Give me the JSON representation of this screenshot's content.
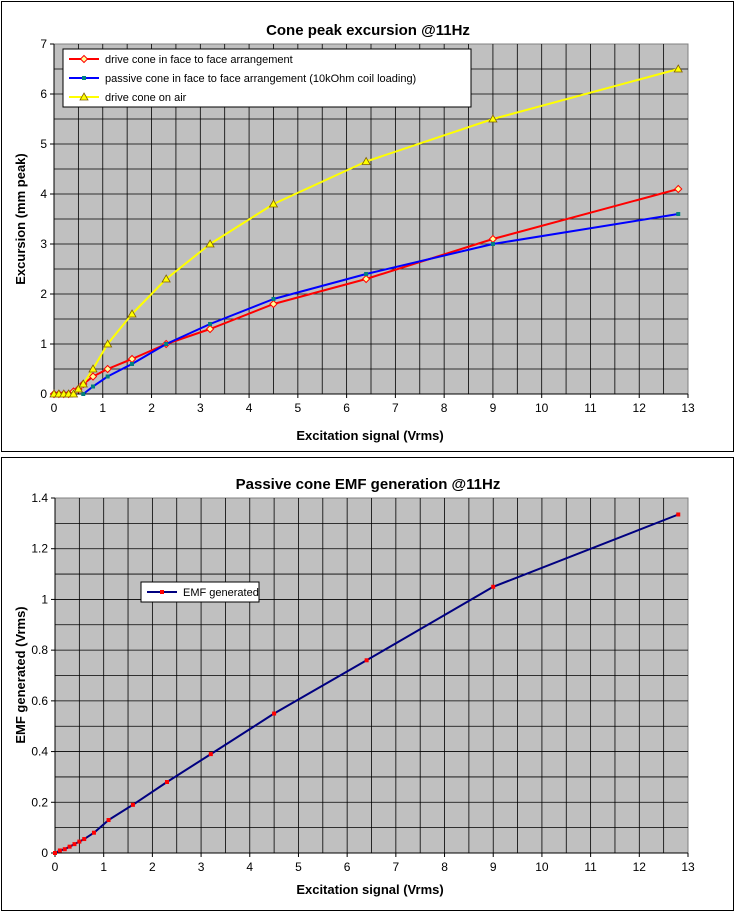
{
  "chart_data": [
    {
      "type": "line",
      "title": "Cone peak excursion @11Hz",
      "xlabel": "Excitation signal (Vrms)",
      "ylabel": "Excursion (mm peak)",
      "xlim": [
        0,
        13
      ],
      "ylim": [
        0,
        7
      ],
      "xticks": [
        "0",
        "1",
        "2",
        "3",
        "4",
        "5",
        "6",
        "7",
        "8",
        "9",
        "10",
        "11",
        "12",
        "13"
      ],
      "yticks": [
        "0",
        "1",
        "2",
        "3",
        "4",
        "5",
        "6",
        "7"
      ],
      "grid": true,
      "legend_position": "top-left",
      "series": [
        {
          "name": "drive cone in face to face arrangement",
          "color": "#ff0000",
          "marker": "diamond",
          "x": [
            0,
            0.1,
            0.2,
            0.3,
            0.4,
            0.5,
            0.6,
            0.8,
            1.1,
            1.6,
            2.3,
            3.2,
            4.5,
            6.4,
            9.0,
            12.8
          ],
          "y": [
            0,
            0,
            0,
            0,
            0.05,
            0.1,
            0.2,
            0.35,
            0.5,
            0.7,
            1.0,
            1.3,
            1.8,
            2.3,
            3.1,
            4.1
          ]
        },
        {
          "name": "passive cone in face to face arrangement (10kOhm coil loading)",
          "color": "#0000ff",
          "marker": "square",
          "x": [
            0.6,
            0.8,
            1.1,
            1.6,
            2.3,
            3.2,
            4.5,
            6.4,
            9.0,
            12.8
          ],
          "y": [
            0,
            0.15,
            0.35,
            0.6,
            1.0,
            1.4,
            1.9,
            2.4,
            3.0,
            3.6
          ]
        },
        {
          "name": "drive cone on air",
          "color": "#ffff00",
          "marker": "triangle",
          "x": [
            0,
            0.1,
            0.2,
            0.3,
            0.4,
            0.5,
            0.6,
            0.8,
            1.1,
            1.6,
            2.3,
            3.2,
            4.5,
            6.4,
            9.0,
            12.8
          ],
          "y": [
            0,
            0,
            0,
            0,
            0,
            0.1,
            0.2,
            0.5,
            1.0,
            1.6,
            2.3,
            3.0,
            3.8,
            4.65,
            5.5,
            6.5
          ]
        }
      ]
    },
    {
      "type": "line",
      "title": "Passive cone EMF generation @11Hz",
      "xlabel": "Excitation signal (Vrms)",
      "ylabel": "EMF generated (Vrms)",
      "xlim": [
        0,
        13
      ],
      "ylim": [
        0,
        1.4
      ],
      "xticks": [
        "0",
        "1",
        "2",
        "3",
        "4",
        "5",
        "6",
        "7",
        "8",
        "9",
        "10",
        "11",
        "12",
        "13"
      ],
      "yticks": [
        "0",
        "0.2",
        "0.4",
        "0.6",
        "0.8",
        "1",
        "1.2",
        "1.4"
      ],
      "grid": true,
      "legend_position": "middle-left",
      "series": [
        {
          "name": "EMF generated",
          "color": "#000080",
          "marker": "square",
          "marker_color": "#ff0000",
          "x": [
            0,
            0.1,
            0.2,
            0.3,
            0.4,
            0.5,
            0.6,
            0.8,
            1.1,
            1.6,
            2.3,
            3.2,
            4.5,
            6.4,
            9.0,
            12.8
          ],
          "y": [
            0,
            0.01,
            0.015,
            0.025,
            0.035,
            0.045,
            0.055,
            0.08,
            0.13,
            0.19,
            0.28,
            0.39,
            0.55,
            0.76,
            1.05,
            1.335
          ]
        }
      ]
    }
  ]
}
